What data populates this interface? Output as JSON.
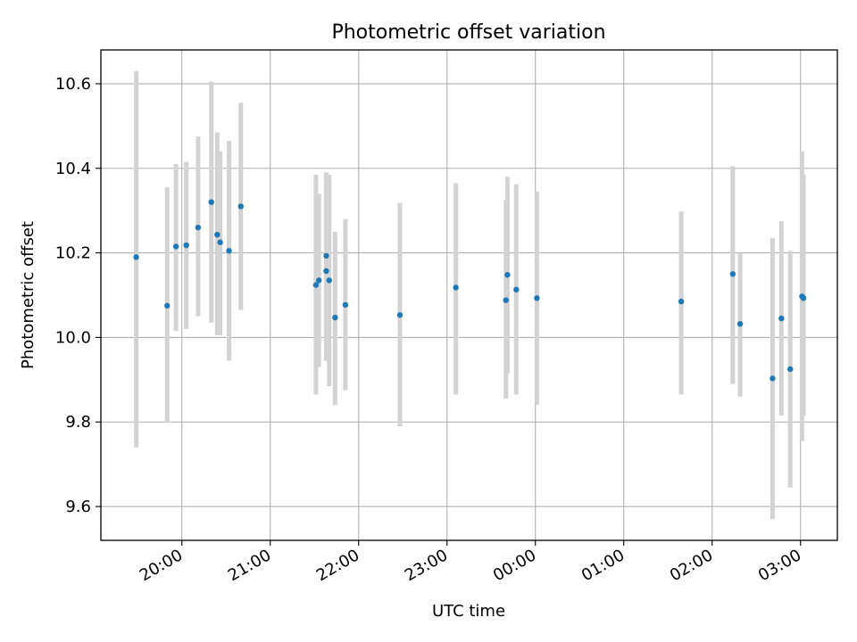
{
  "chart_data": {
    "type": "scatter",
    "title": "Photometric offset variation",
    "xlabel": "UTC time",
    "ylabel": "Photometric offset",
    "grid": true,
    "x_axis_type": "time",
    "xlim": [
      "19:05",
      "03:25"
    ],
    "ylim": [
      9.52,
      10.68
    ],
    "x_ticks": [
      "20:00",
      "21:00",
      "22:00",
      "23:00",
      "00:00",
      "01:00",
      "02:00",
      "03:00"
    ],
    "y_ticks": [
      9.6,
      9.8,
      10.0,
      10.2,
      10.4,
      10.6
    ],
    "y_tick_labels": [
      "9.6",
      "9.8",
      "10.0",
      "10.2",
      "10.4",
      "10.6"
    ],
    "point_color": "#1f77b4",
    "errorbar_color": "#d3d3d3",
    "points": [
      {
        "x": "19:29",
        "y": 10.19,
        "ylow": 9.74,
        "yhigh": 10.63
      },
      {
        "x": "19:50",
        "y": 10.075,
        "ylow": 9.8,
        "yhigh": 10.355
      },
      {
        "x": "19:56",
        "y": 10.215,
        "ylow": 10.015,
        "yhigh": 10.41
      },
      {
        "x": "20:03",
        "y": 10.218,
        "ylow": 10.02,
        "yhigh": 10.415
      },
      {
        "x": "20:11",
        "y": 10.26,
        "ylow": 10.05,
        "yhigh": 10.475
      },
      {
        "x": "20:20",
        "y": 10.32,
        "ylow": 10.035,
        "yhigh": 10.605
      },
      {
        "x": "20:24",
        "y": 10.243,
        "ylow": 10.005,
        "yhigh": 10.485
      },
      {
        "x": "20:26",
        "y": 10.225,
        "ylow": 10.005,
        "yhigh": 10.44
      },
      {
        "x": "20:32",
        "y": 10.205,
        "ylow": 9.945,
        "yhigh": 10.465
      },
      {
        "x": "20:40",
        "y": 10.31,
        "ylow": 10.065,
        "yhigh": 10.555
      },
      {
        "x": "21:31",
        "y": 10.124,
        "ylow": 9.865,
        "yhigh": 10.385
      },
      {
        "x": "21:33",
        "y": 10.135,
        "ylow": 9.93,
        "yhigh": 10.34
      },
      {
        "x": "21:38",
        "y": 10.193,
        "ylow": 9.995,
        "yhigh": 10.39
      },
      {
        "x": "21:38",
        "y": 10.157,
        "ylow": 9.945,
        "yhigh": 10.37
      },
      {
        "x": "21:40",
        "y": 10.135,
        "ylow": 9.885,
        "yhigh": 10.385
      },
      {
        "x": "21:44",
        "y": 10.047,
        "ylow": 9.84,
        "yhigh": 10.25
      },
      {
        "x": "21:51",
        "y": 10.077,
        "ylow": 9.875,
        "yhigh": 10.28
      },
      {
        "x": "22:28",
        "y": 10.053,
        "ylow": 9.79,
        "yhigh": 10.318
      },
      {
        "x": "23:06",
        "y": 10.118,
        "ylow": 9.865,
        "yhigh": 10.365
      },
      {
        "x": "23:40",
        "y": 10.088,
        "ylow": 9.855,
        "yhigh": 10.325
      },
      {
        "x": "23:41",
        "y": 10.148,
        "ylow": 9.915,
        "yhigh": 10.38
      },
      {
        "x": "23:47",
        "y": 10.113,
        "ylow": 9.865,
        "yhigh": 10.362
      },
      {
        "x": "00:01",
        "y": 10.093,
        "ylow": 9.84,
        "yhigh": 10.345
      },
      {
        "x": "01:39",
        "y": 10.085,
        "ylow": 9.865,
        "yhigh": 10.298
      },
      {
        "x": "02:14",
        "y": 10.15,
        "ylow": 9.89,
        "yhigh": 10.405
      },
      {
        "x": "02:19",
        "y": 10.032,
        "ylow": 9.86,
        "yhigh": 10.2
      },
      {
        "x": "02:41",
        "y": 9.903,
        "ylow": 9.57,
        "yhigh": 10.235
      },
      {
        "x": "02:47",
        "y": 10.045,
        "ylow": 9.815,
        "yhigh": 10.275
      },
      {
        "x": "02:53",
        "y": 9.925,
        "ylow": 9.645,
        "yhigh": 10.205
      },
      {
        "x": "03:01",
        "y": 10.097,
        "ylow": 9.755,
        "yhigh": 10.44
      },
      {
        "x": "03:02",
        "y": 10.093,
        "ylow": 9.815,
        "yhigh": 10.385
      }
    ]
  }
}
